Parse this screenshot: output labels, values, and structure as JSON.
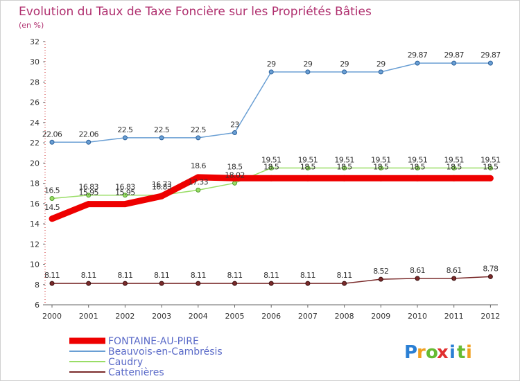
{
  "chart_data": {
    "type": "line",
    "title": "Evolution du Taux de Taxe Foncière sur les Propriétés Bâties",
    "subtitle": "(en %)",
    "x": [
      "2000",
      "2001",
      "2002",
      "2003",
      "2004",
      "2005",
      "2006",
      "2007",
      "2008",
      "2009",
      "2010",
      "2011",
      "2012"
    ],
    "ylim": [
      6,
      32
    ],
    "yticks": [
      "6",
      "8",
      "10",
      "12",
      "14",
      "16",
      "18",
      "20",
      "22",
      "24",
      "26",
      "28",
      "30",
      "32"
    ],
    "grid": false,
    "legend_position": "bottom-left",
    "series": [
      {
        "name": "FONTAINE-AU-PIRE",
        "color": "#ee0000",
        "values": [
          14.5,
          15.95,
          15.95,
          16.73,
          18.6,
          18.5,
          18.5,
          18.5,
          18.5,
          18.5,
          18.5,
          18.5,
          18.5
        ],
        "labels": [
          "14.5",
          "15.95",
          "15.95",
          "16.73",
          "18.6",
          "18.5",
          "18.5",
          "18.5",
          "18.5",
          "18.5",
          "18.5",
          "18.5",
          "18.5"
        ]
      },
      {
        "name": "Beauvois-en-Cambrésis",
        "color": "#6a9fd4",
        "values": [
          22.06,
          22.06,
          22.5,
          22.5,
          22.5,
          23,
          29,
          29,
          29,
          29,
          29.87,
          29.87,
          29.87
        ],
        "labels": [
          "22.06",
          "22.06",
          "22.5",
          "22.5",
          "22.5",
          "23",
          "29",
          "29",
          "29",
          "29",
          "29.87",
          "29.87",
          "29.87"
        ]
      },
      {
        "name": "Caudry",
        "color": "#99dd66",
        "values": [
          16.5,
          16.83,
          16.83,
          16.83,
          17.33,
          18.02,
          19.51,
          19.51,
          19.51,
          19.51,
          19.51,
          19.51,
          19.51
        ],
        "labels": [
          "16.5",
          "16.83",
          "16.83",
          "16.83",
          "17.33",
          "18.02",
          "19.51",
          "19.51",
          "19.51",
          "19.51",
          "19.51",
          "19.51",
          "19.51"
        ]
      },
      {
        "name": "Cattenières",
        "color": "#7a2a2a",
        "values": [
          8.11,
          8.11,
          8.11,
          8.11,
          8.11,
          8.11,
          8.11,
          8.11,
          8.11,
          8.52,
          8.61,
          8.61,
          8.78
        ],
        "labels": [
          "8.11",
          "8.11",
          "8.11",
          "8.11",
          "8.11",
          "8.11",
          "8.11",
          "8.11",
          "8.11",
          "8.52",
          "8.61",
          "8.61",
          "8.78"
        ]
      }
    ]
  },
  "logo": {
    "letters": [
      "P",
      "r",
      "o",
      "x",
      "i",
      "t",
      "i"
    ],
    "colors": [
      "#2a7fd4",
      "#f0a020",
      "#66bb33",
      "#e03030",
      "#2a7fd4",
      "#66bb33",
      "#f0a020"
    ]
  }
}
